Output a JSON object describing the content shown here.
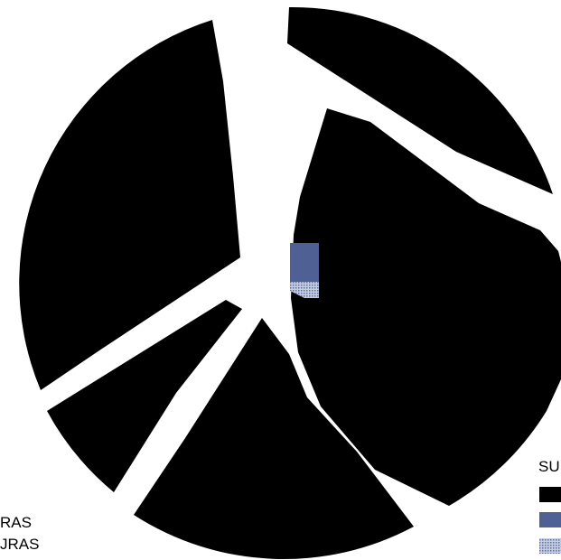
{
  "chart_data": {
    "type": "pie",
    "title": "",
    "legend": {
      "placement": "right",
      "title": "SU",
      "entries": [
        {
          "label": "",
          "color": "#000000",
          "pattern": "solid"
        },
        {
          "label": "",
          "color": "#4f6194",
          "pattern": "solid"
        },
        {
          "label": "",
          "color": "#8c9bc4",
          "pattern": "dotted"
        }
      ]
    },
    "side_labels": [
      "RAS",
      "JRAS"
    ],
    "slices": [
      {
        "name": "slice-upper-right",
        "share": 0.122,
        "color": "#000000",
        "exploded": true
      },
      {
        "name": "slice-right",
        "share": 0.316,
        "color": "#000000",
        "exploded": false
      },
      {
        "name": "slice-bottom",
        "share": 0.165,
        "color": "#000000",
        "exploded": true
      },
      {
        "name": "slice-lower-left",
        "share": 0.075,
        "color": "#000000",
        "exploded": true
      },
      {
        "name": "slice-left",
        "share": 0.272,
        "color": "#000000",
        "exploded": true
      },
      {
        "name": "slice-small-blue",
        "share": 0.03,
        "color": "#4f6194",
        "exploded": false
      },
      {
        "name": "slice-small-dotted",
        "share": 0.02,
        "color": "#8c9bc4",
        "exploded": false
      }
    ]
  }
}
